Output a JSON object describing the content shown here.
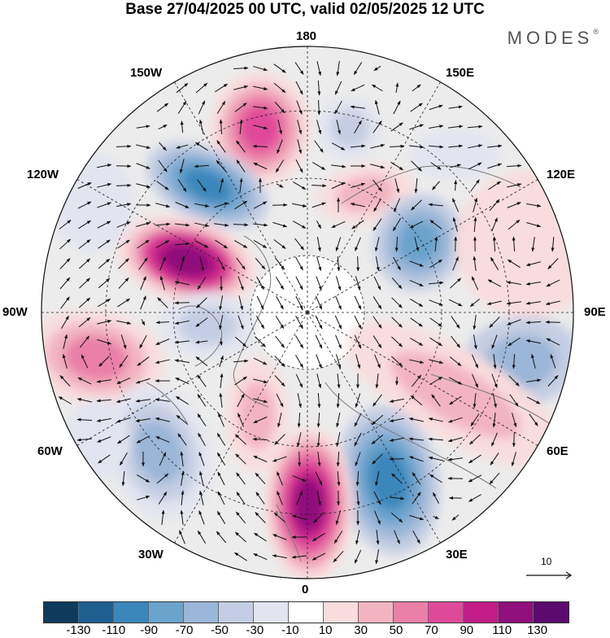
{
  "title": "Base 27/04/2025 00 UTC, valid 02/05/2025 12 UTC",
  "brand": "MODES",
  "brand_mark": "®",
  "lon_labels": {
    "lon_180": "180",
    "lon_150w": "150W",
    "lon_150e": "150E",
    "lon_120w": "120W",
    "lon_120e": "120E",
    "lon_90w": "90W",
    "lon_90e": "90E",
    "lon_60w": "60W",
    "lon_60e": "60E",
    "lon_30w": "30W",
    "lon_30e": "30E",
    "lon_0": "0"
  },
  "reference_vector": "10",
  "colorbar": {
    "colors": [
      "#0e3a5c",
      "#1e5f8f",
      "#3b86bb",
      "#6aa3cc",
      "#9ab6d8",
      "#c4cde3",
      "#e2e4ef",
      "#ffffff",
      "#f9dcdd",
      "#f2b4c1",
      "#ea7fa8",
      "#e0499a",
      "#c21d86",
      "#8f0f7b",
      "#5b0a6e"
    ],
    "ticks": [
      "-130",
      "-110",
      "-90",
      "-70",
      "-50",
      "-30",
      "-10",
      "10",
      "30",
      "50",
      "70",
      "90",
      "110",
      "130"
    ]
  },
  "palette": {
    "neutral_gray": "#ececec",
    "land_outline": "#7a7a7a",
    "grid": "#222222"
  }
}
